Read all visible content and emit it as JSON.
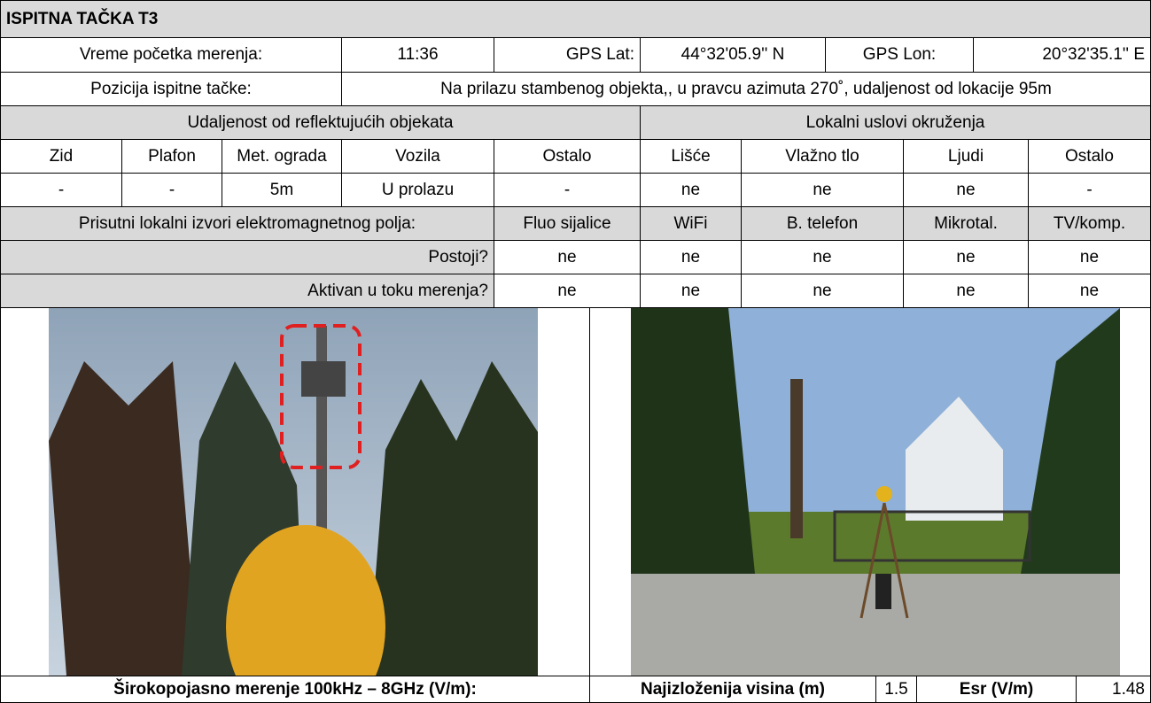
{
  "header": {
    "title": "ISPITNA TAČKA T3"
  },
  "info": {
    "start_time_label": "Vreme početka merenja:",
    "start_time": "11:36",
    "gps_lat_label": "GPS Lat:",
    "gps_lat": "44°32'05.9'' N",
    "gps_lon_label": "GPS Lon:",
    "gps_lon": "20°32'35.1'' E",
    "position_label": "Pozicija ispitne tačke:",
    "position": "Na prilazu stambenog objekta,, u pravcu azimuta 270˚, udaljenost od lokacije 95m"
  },
  "table": {
    "reflective_header": "Udaljenost od reflektujućih objekata",
    "environment_header": "Lokalni uslovi okruženja",
    "columns": [
      "Zid",
      "Plafon",
      "Met. ograda",
      "Vozila",
      "Ostalo",
      "Lišće",
      "Vlažno tlo",
      "Ljudi",
      "Ostalo"
    ],
    "values": [
      "-",
      "-",
      "5m",
      "U prolazu",
      "-",
      "ne",
      "ne",
      "ne",
      "-"
    ],
    "sources_label": "Prisutni lokalni izvori elektromagnetnog polja:",
    "sources": [
      "Fluo sijalice",
      "WiFi",
      "B. telefon",
      "Mikrotal.",
      "TV/komp."
    ],
    "rows": [
      {
        "label": "Postoji?",
        "values": [
          "ne",
          "ne",
          "ne",
          "ne",
          "ne"
        ]
      },
      {
        "label": "Aktivan u toku merenja?",
        "values": [
          "ne",
          "ne",
          "ne",
          "ne",
          "ne"
        ]
      }
    ]
  },
  "footer": {
    "broadband_label": "Širokopojasno merenje 100kHz – 8GHz (V/m):",
    "height_label": "Najizloženija visina (m)",
    "height": 1.5,
    "esr_label": "Esr (V/m)",
    "esr": 1.48
  }
}
